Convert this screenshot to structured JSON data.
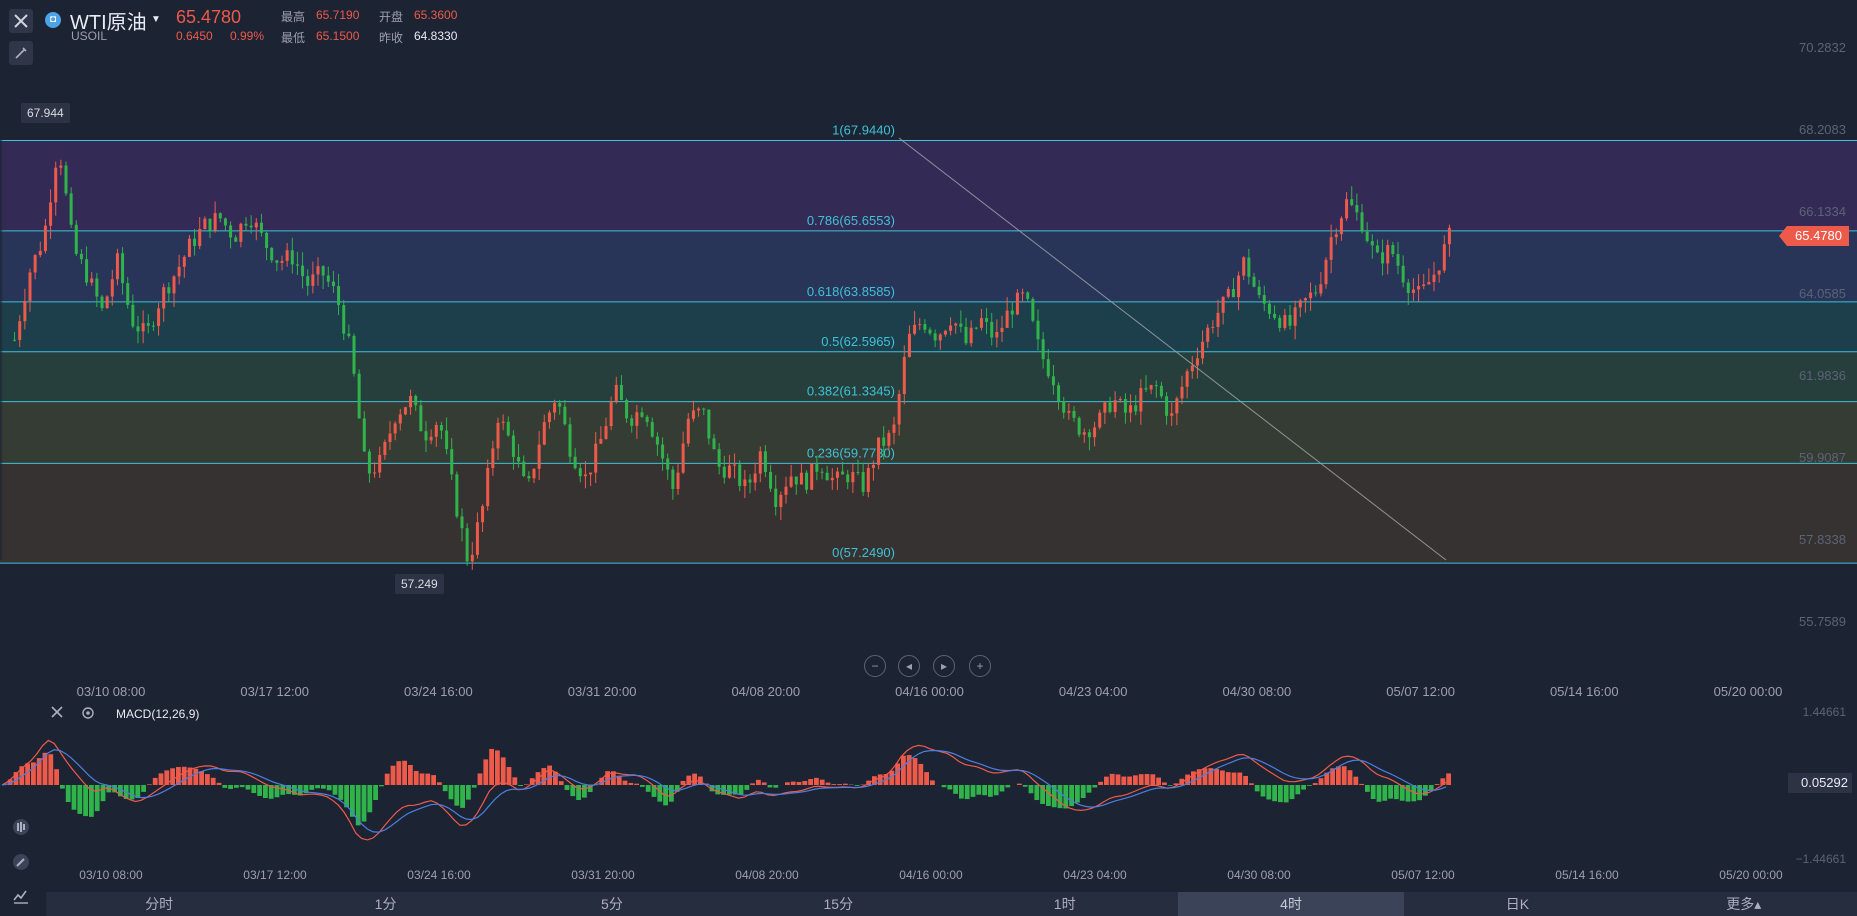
{
  "header": {
    "badge": "◘",
    "name": "WTI原油",
    "code": "USOIL",
    "price": "65.4780",
    "change": "0.6450",
    "change_pct": "0.99%",
    "high_label": "最高",
    "high": "65.7190",
    "open_label": "开盘",
    "open": "65.3600",
    "low_label": "最低",
    "low": "65.1500",
    "prev_label": "昨收",
    "prev": "64.8330"
  },
  "colors": {
    "up": "#ee5a4a",
    "down": "#2fb34a",
    "fib_line": "#3fc1d6",
    "bg": "#1c2333"
  },
  "price_axis": [
    "70.2832",
    "68.2083",
    "66.1334",
    "64.0585",
    "61.9836",
    "59.9087",
    "57.8338",
    "55.7589"
  ],
  "current_price_tag": "65.4780",
  "high_marker": "67.944",
  "low_marker": "57.249",
  "fib_levels": [
    {
      "label": "1(67.9440)",
      "value": 67.944
    },
    {
      "label": "0.786(65.6553)",
      "value": 65.6553
    },
    {
      "label": "0.618(63.8585)",
      "value": 63.8585
    },
    {
      "label": "0.5(62.5965)",
      "value": 62.5965
    },
    {
      "label": "0.382(61.3345)",
      "value": 61.3345
    },
    {
      "label": "0.236(59.7730)",
      "value": 59.773
    },
    {
      "label": "0(57.2490)",
      "value": 57.249
    }
  ],
  "time_axis": [
    "03/10 08:00",
    "03/17 12:00",
    "03/24 16:00",
    "03/31 20:00",
    "04/08 20:00",
    "04/16 00:00",
    "04/23 04:00",
    "04/30 08:00",
    "05/07 12:00",
    "05/14 16:00",
    "05/20 00:00"
  ],
  "macd": {
    "label": "MACD(12,26,9)",
    "axis_top": "1.44661",
    "axis_bottom": "−1.44661",
    "value": "0.05292"
  },
  "tabs": [
    "分时",
    "1分",
    "5分",
    "15分",
    "1时",
    "4时",
    "日K",
    "更多▴"
  ],
  "active_tab": "4时",
  "chart_data": {
    "type": "candlestick",
    "title": "WTI原油",
    "ylim": [
      55.7589,
      70.2832
    ],
    "path_values": [
      62.9,
      64.6,
      65.5,
      67.9,
      65.2,
      64.5,
      63.6,
      64.9,
      63.4,
      63.0,
      64.0,
      64.6,
      65.3,
      65.8,
      66.0,
      65.5,
      66.1,
      65.4,
      64.9,
      65.0,
      64.3,
      64.6,
      64.0,
      62.5,
      59.5,
      59.8,
      61.0,
      61.4,
      60.5,
      60.9,
      59.0,
      57.25,
      58.7,
      61.0,
      60.2,
      59.0,
      60.6,
      61.5,
      60.1,
      59.4,
      60.3,
      61.6,
      60.9,
      61.2,
      60.2,
      59.1,
      60.9,
      61.1,
      59.7,
      59.6,
      59.1,
      60.1,
      58.9,
      59.5,
      59.3,
      59.8,
      59.3,
      59.5,
      59.2,
      60.2,
      60.5,
      62.9,
      63.4,
      63.0,
      63.5,
      62.8,
      63.4,
      62.9,
      63.7,
      64.0,
      62.6,
      61.9,
      60.9,
      60.6,
      60.8,
      61.4,
      61.0,
      61.5,
      61.7,
      60.9,
      62.0,
      62.8,
      63.5,
      64.0,
      64.9,
      63.9,
      63.6,
      63.2,
      63.8,
      64.2,
      65.6,
      66.4,
      65.9,
      64.9,
      65.2,
      64.4,
      64.0,
      64.6,
      65.5
    ]
  }
}
